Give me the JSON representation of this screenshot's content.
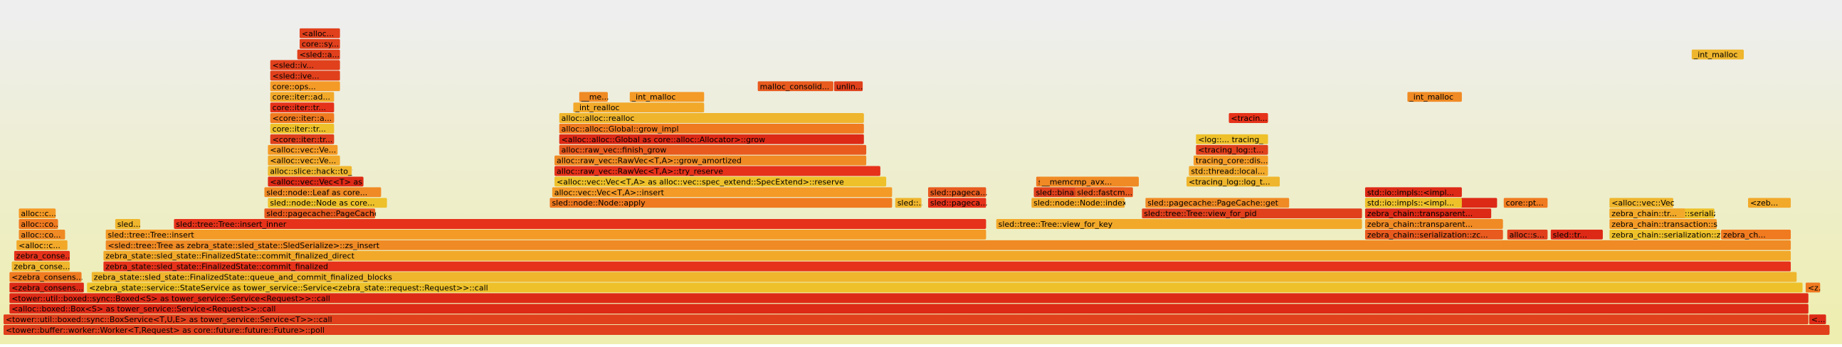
{
  "frames": [
    {
      "label": "<tower::buffer::worker::Worker<T,Request> as core::future::future::Future>::poll"
    },
    {
      "label": "<tower::util::boxed::sync::BoxService<T,U,E> as tower_service::Service<T>>::call"
    },
    {
      "label": "<..."
    },
    {
      "label": "<alloc::boxed::Box<S> as tower_service::Service<Request>>::call"
    },
    {
      "label": "<tower::util::boxed::sync::Boxed<S> as tower_service::Service<Request>>::call"
    },
    {
      "label": "<zebra_consens..."
    },
    {
      "label": "<zebra_state::service::StateService as tower_service::Service<zebra_state::request::Request>>::call"
    },
    {
      "label": "<z..."
    },
    {
      "label": "<zebra_consens..."
    },
    {
      "label": "zebra_state::sled_state::FinalizedState::queue_and_commit_finalized_blocks"
    },
    {
      "label": "zebra_conse..."
    },
    {
      "label": "zebra_state::sled_state::FinalizedState::commit_finalized"
    },
    {
      "label": "zebra_conse..."
    },
    {
      "label": "zebra_state::sled_state::FinalizedState::commit_finalized_direct"
    },
    {
      "label": "<alloc::c..."
    },
    {
      "label": "<sled::tree::Tree as zebra_state::sled_state::SledSerialize>::zs_insert"
    },
    {
      "label": "alloc::co..."
    },
    {
      "label": "sled::tree::Tree::insert"
    },
    {
      "label": "zebra_chain::serialization::zc..."
    },
    {
      "label": "alloc::s..."
    },
    {
      "label": "sled::tr..."
    },
    {
      "label": "zebra_chain::serialization::ze..."
    },
    {
      "label": "zebra_ch..."
    },
    {
      "label": "alloc::co..."
    },
    {
      "label": "sled..."
    },
    {
      "label": "sled::tree::Tree::insert_inner"
    },
    {
      "label": "sled::tree::Tree::view_for_key"
    },
    {
      "label": "zebra_chain::transparent..."
    },
    {
      "label": "zebra_chain::transaction::se..."
    },
    {
      "label": "alloc::c..."
    },
    {
      "label": "sled::pagecache::PageCache::link"
    },
    {
      "label": "sled::tree::Tree::view_for_pid"
    },
    {
      "label": "zebra_chain::transparent..."
    },
    {
      "label": "zebra_chain::block::serialize..."
    },
    {
      "label": "sled::node::Node as core..."
    },
    {
      "label": "sled::node::Node::apply"
    },
    {
      "label": "sled::..."
    },
    {
      "label": "sled::pageca..."
    },
    {
      "label": "sled::node::Node::index_..."
    },
    {
      "label": "sled::pagecache::PageCache::get"
    },
    {
      "label": "sled::node::Leaf as core..."
    },
    {
      "label": "alloc::vec::Vec<T,A>::insert"
    },
    {
      "label": "sled::pageca..."
    },
    {
      "label": "sled::binary_search..."
    },
    {
      "label": "std::io::impls::<impl..."
    },
    {
      "label": "<alloc::vec::Vec<T> as core::..."
    },
    {
      "label": "<alloc::vec::Vec<T,A> as alloc::vec::spec_extend::SpecExtend>::reserve"
    },
    {
      "label": "sled::binary_search..."
    },
    {
      "label": "<tracing_log::log_t..."
    },
    {
      "label": "alloc::slice::hack::to_v..."
    },
    {
      "label": "alloc::raw_vec::RawVec<T,A>::try_reserve"
    },
    {
      "label": "std::thread::local..."
    },
    {
      "label": "<alloc::vec::Ve..."
    },
    {
      "label": "alloc::raw_vec::RawVec<T,A>::grow_amortized"
    },
    {
      "label": "tracing_core::dis..."
    },
    {
      "label": "<alloc::vec::Ve..."
    },
    {
      "label": "alloc::raw_vec::finish_grow"
    },
    {
      "label": "<tracing_log::t..."
    },
    {
      "label": "<core::iter::tr..."
    },
    {
      "label": "<alloc::alloc::Global as core::alloc::Allocator>::grow"
    },
    {
      "label": "<log::... tracing_"
    },
    {
      "label": "core::iter::tr..."
    },
    {
      "label": "alloc::alloc::Global::grow_impl"
    },
    {
      "label": "<core::iter::a..."
    },
    {
      "label": "alloc::alloc::realloc"
    },
    {
      "label": "<tracin..."
    },
    {
      "label": "core::iter::tr..."
    },
    {
      "label": "_int_realloc"
    },
    {
      "label": "core::iter::ad..."
    },
    {
      "label": "__me..."
    },
    {
      "label": "_int_malloc"
    },
    {
      "label": "core::ops..."
    },
    {
      "label": "malloc_consolid..."
    },
    {
      "label": "unlin..."
    },
    {
      "label": "<sled::ive..."
    },
    {
      "label": "<sled::iv..."
    },
    {
      "label": "<sled::a..."
    },
    {
      "label": "core::sy..."
    },
    {
      "label": "<alloc..."
    },
    {
      "label": "_int_malloc"
    },
    {
      "label": "_int_malloc"
    },
    {
      "label": "__memcmp_avx..."
    },
    {
      "label": "sled::fastcm..."
    },
    {
      "label": "zebra_chain::transpar..."
    },
    {
      "label": "std::io::impls::<impl..."
    },
    {
      "label": "core::pt..."
    },
    {
      "label": "<alloc::vec::Vec<..."
    },
    {
      "label": "zebra_chain::tr..."
    },
    {
      "label": "<zeb..."
    }
  ]
}
